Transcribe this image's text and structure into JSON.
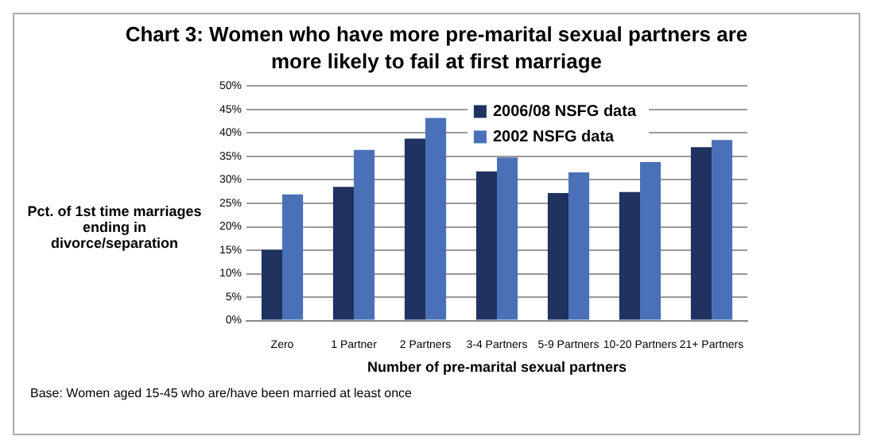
{
  "chart_data": {
    "type": "bar",
    "title": "Chart 3: Women who have more pre-marital sexual partners are more likely to fail at first marriage",
    "xlabel": "Number of pre-marital sexual partners",
    "ylabel": "Pct. of 1st time marriages ending in divorce/separation",
    "categories": [
      "Zero",
      "1 Partner",
      "2 Partners",
      "3-4 Partners",
      "5-9 Partners",
      "10-20 Partners",
      "21+ Partners"
    ],
    "series": [
      {
        "name": "2006/08 NSFG data",
        "color": "#1f3260",
        "values": [
          15.1,
          28.5,
          38.8,
          31.8,
          27.2,
          27.4,
          37.0
        ]
      },
      {
        "name": "2002 NSFG data",
        "color": "#4a71b8",
        "values": [
          26.9,
          36.4,
          43.2,
          34.8,
          31.6,
          33.8,
          38.5
        ]
      }
    ],
    "ylim": [
      0,
      50
    ],
    "yticks": [
      {
        "value": 0,
        "label": "0%"
      },
      {
        "value": 5,
        "label": "5%"
      },
      {
        "value": 10,
        "label": "10%"
      },
      {
        "value": 15,
        "label": "15%"
      },
      {
        "value": 20,
        "label": "20%"
      },
      {
        "value": 25,
        "label": "25%"
      },
      {
        "value": 30,
        "label": "30%"
      },
      {
        "value": 35,
        "label": "35%"
      },
      {
        "value": 40,
        "label": "40%"
      },
      {
        "value": 45,
        "label": "45%"
      },
      {
        "value": 50,
        "label": "50%"
      }
    ],
    "grid": "y",
    "legend": "top right",
    "annotations": [
      "Base: Women aged 15-45 who are/have been married at least once"
    ]
  }
}
